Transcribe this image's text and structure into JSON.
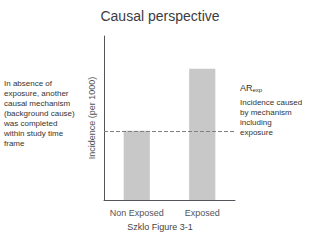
{
  "chart_data": {
    "type": "bar",
    "title": "Causal perspective",
    "subtitle": "Szklo Figure 3-1",
    "categories": [
      "Non Exposed",
      "Exposed"
    ],
    "values": [
      0.38,
      0.72
    ],
    "color": "#c8c8c8",
    "ylabel": "Incidence (per 1000)",
    "ylim": [
      0,
      0.9
    ],
    "yticks": [],
    "grid": false,
    "tick_labels": "x",
    "dashed_line": 0.38,
    "annotations": [
      "AR",
      "exp",
      "Incidence caused\nby mechanism\nincluding\nexposure",
      "In absence of\nexposure, another\ncausal mechanism\n(background cause)\nwas completed\nwithin study time\nframe"
    ]
  }
}
